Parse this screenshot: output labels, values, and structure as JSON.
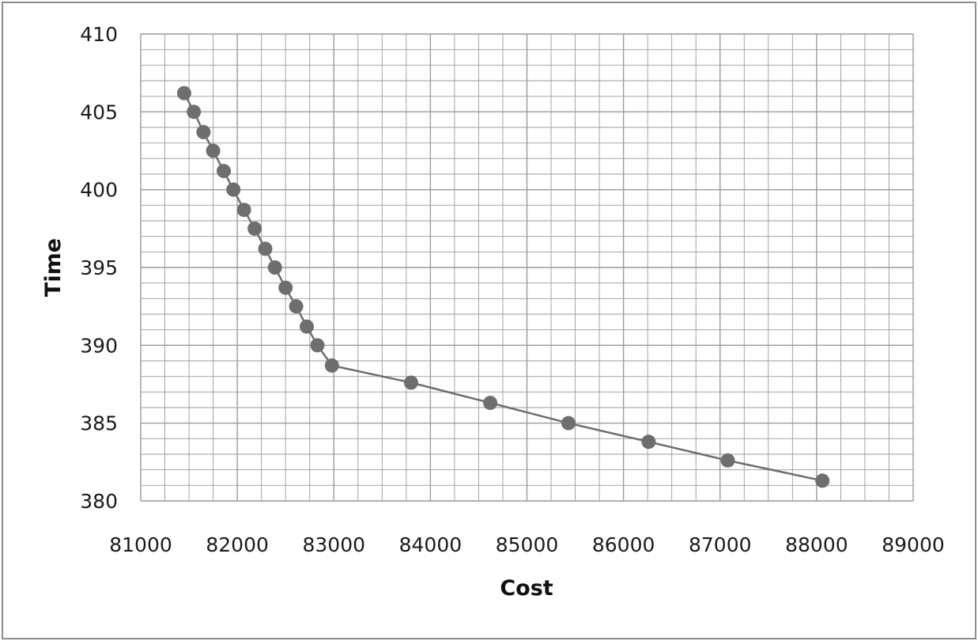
{
  "chart_data": {
    "type": "line",
    "title": "",
    "xlabel": "Cost",
    "ylabel": "Time",
    "xlim": [
      81000,
      89000
    ],
    "ylim": [
      380,
      410
    ],
    "x_ticks": [
      81000,
      82000,
      83000,
      84000,
      85000,
      86000,
      87000,
      88000,
      89000
    ],
    "y_ticks": [
      380,
      385,
      390,
      395,
      400,
      405,
      410
    ],
    "x_minor_step": 250,
    "y_minor_step": 1,
    "grid": true,
    "legend": "none",
    "marker": "circle",
    "series": [
      {
        "color": "#6e6e6e",
        "x": [
          81450,
          81550,
          81650,
          81750,
          81860,
          81960,
          82070,
          82180,
          82290,
          82390,
          82500,
          82610,
          82720,
          82830,
          82980,
          83800,
          84620,
          85430,
          86260,
          87080,
          88060
        ],
        "y": [
          406.2,
          405.0,
          403.7,
          402.5,
          401.2,
          400.0,
          398.7,
          397.5,
          396.2,
          395.0,
          393.7,
          392.5,
          391.2,
          390.0,
          388.7,
          387.6,
          386.3,
          385.0,
          383.8,
          382.6,
          381.3
        ]
      }
    ]
  },
  "colors": {
    "grid": "#9a9a9a",
    "border": "#8c8c8c",
    "line": "#6e6e6e",
    "marker": "#6e6e6e"
  }
}
